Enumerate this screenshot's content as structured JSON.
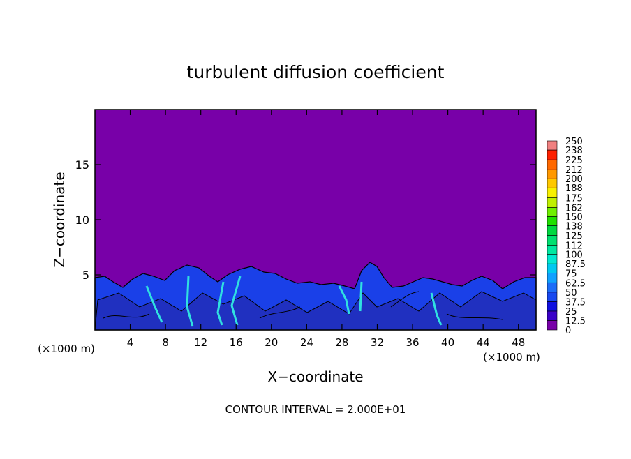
{
  "chart_data": {
    "type": "contour",
    "title": "turbulent diffusion coefficient",
    "xlabel": "X−coordinate",
    "ylabel": "Z−coordinate",
    "x_unit_label": "(×1000 m)",
    "y_unit_label": "(×1000 m)",
    "note": "CONTOUR INTERVAL = 2.000E+01",
    "xlim": [
      0,
      50
    ],
    "ylim": [
      0,
      20
    ],
    "xticks": [
      4,
      8,
      12,
      16,
      20,
      24,
      28,
      32,
      36,
      40,
      44,
      48
    ],
    "yticks": [
      5,
      10,
      15
    ],
    "colorbar": {
      "levels": [
        0,
        12.5,
        25,
        37.5,
        50,
        62.5,
        75,
        87.5,
        100,
        112,
        125,
        138,
        150,
        162,
        175,
        188,
        200,
        212,
        225,
        238,
        250
      ],
      "colors": [
        "#7800a8",
        "#3a00c8",
        "#1010e0",
        "#1848f0",
        "#1c6cf8",
        "#10a0ff",
        "#00c8f0",
        "#00e8d0",
        "#00e8a0",
        "#00e070",
        "#00d840",
        "#20e000",
        "#70f000",
        "#c0f000",
        "#f8f000",
        "#ffc800",
        "#ff9800",
        "#ff6800",
        "#ff2000",
        "#f08080"
      ]
    }
  }
}
